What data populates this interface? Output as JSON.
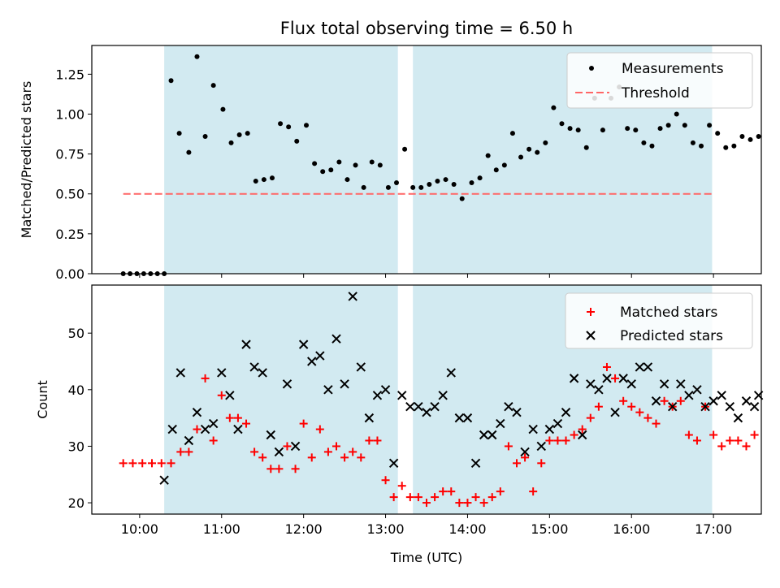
{
  "chart_data": [
    {
      "type": "scatter",
      "title": "Flux total observing time = 6.50 h",
      "xlabel": "",
      "ylabel": "Matched/Predicted stars",
      "ylim": [
        0,
        1.43
      ],
      "yticks": [
        "0.00",
        "0.25",
        "0.50",
        "0.75",
        "1.00",
        "1.25"
      ],
      "xlim": [
        "09:25",
        "17:35"
      ],
      "legend_position": "top-right",
      "legend": [
        {
          "label": "Measurements",
          "marker": "dot",
          "color": "#000000"
        },
        {
          "label": "Threshold",
          "marker": "dashed-line",
          "color": "#ff6666"
        }
      ],
      "threshold": {
        "name": "Threshold",
        "y": 0.5,
        "x_start": "09:48",
        "x_end": "17:00",
        "color": "#ff6666"
      },
      "shaded_intervals": [
        [
          "10:18",
          "13:09"
        ],
        [
          "13:20",
          "16:59"
        ]
      ],
      "shade_color": "#add8e6",
      "series": [
        {
          "name": "Measurements",
          "color": "#000000",
          "points": [
            [
              "09:48",
              0
            ],
            [
              "09:53",
              0
            ],
            [
              "09:58",
              0
            ],
            [
              "10:03",
              0
            ],
            [
              "10:08",
              0
            ],
            [
              "10:13",
              0
            ],
            [
              "10:18",
              0
            ],
            [
              "10:23",
              1.21
            ],
            [
              "10:29",
              0.88
            ],
            [
              "10:36",
              0.76
            ],
            [
              "10:42",
              1.36
            ],
            [
              "10:48",
              0.86
            ],
            [
              "10:54",
              1.18
            ],
            [
              "11:01",
              1.03
            ],
            [
              "11:07",
              0.82
            ],
            [
              "11:13",
              0.87
            ],
            [
              "11:19",
              0.88
            ],
            [
              "11:25",
              0.58
            ],
            [
              "11:31",
              0.59
            ],
            [
              "11:37",
              0.6
            ],
            [
              "11:43",
              0.94
            ],
            [
              "11:49",
              0.92
            ],
            [
              "11:55",
              0.83
            ],
            [
              "12:02",
              0.93
            ],
            [
              "12:08",
              0.69
            ],
            [
              "12:14",
              0.64
            ],
            [
              "12:20",
              0.65
            ],
            [
              "12:26",
              0.7
            ],
            [
              "12:32",
              0.59
            ],
            [
              "12:38",
              0.68
            ],
            [
              "12:44",
              0.54
            ],
            [
              "12:50",
              0.7
            ],
            [
              "12:56",
              0.68
            ],
            [
              "13:02",
              0.54
            ],
            [
              "13:08",
              0.57
            ],
            [
              "13:14",
              0.78
            ],
            [
              "13:20",
              0.54
            ],
            [
              "13:26",
              0.54
            ],
            [
              "13:32",
              0.56
            ],
            [
              "13:38",
              0.58
            ],
            [
              "13:44",
              0.59
            ],
            [
              "13:50",
              0.56
            ],
            [
              "13:56",
              0.47
            ],
            [
              "14:03",
              0.57
            ],
            [
              "14:09",
              0.6
            ],
            [
              "14:15",
              0.74
            ],
            [
              "14:21",
              0.65
            ],
            [
              "14:27",
              0.68
            ],
            [
              "14:33",
              0.88
            ],
            [
              "14:39",
              0.73
            ],
            [
              "14:45",
              0.78
            ],
            [
              "14:51",
              0.76
            ],
            [
              "14:57",
              0.82
            ],
            [
              "15:03",
              1.04
            ],
            [
              "15:09",
              0.94
            ],
            [
              "15:15",
              0.91
            ],
            [
              "15:21",
              0.9
            ],
            [
              "15:27",
              0.79
            ],
            [
              "15:33",
              1.1
            ],
            [
              "15:39",
              0.9
            ],
            [
              "15:45",
              1.1
            ],
            [
              "15:51",
              1.17
            ],
            [
              "15:57",
              0.91
            ],
            [
              "16:03",
              0.9
            ],
            [
              "16:09",
              0.82
            ],
            [
              "16:15",
              0.8
            ],
            [
              "16:21",
              0.91
            ],
            [
              "16:27",
              0.93
            ],
            [
              "16:33",
              1.0
            ],
            [
              "16:39",
              0.93
            ],
            [
              "16:45",
              0.82
            ],
            [
              "16:51",
              0.8
            ],
            [
              "16:57",
              0.93
            ],
            [
              "17:03",
              0.88
            ],
            [
              "17:09",
              0.79
            ],
            [
              "17:15",
              0.8
            ],
            [
              "17:21",
              0.86
            ],
            [
              "17:27",
              0.84
            ],
            [
              "17:33",
              0.86
            ]
          ]
        }
      ]
    },
    {
      "type": "scatter",
      "title": "",
      "xlabel": "Time (UTC)",
      "ylabel": "Count",
      "ylim": [
        18,
        58.5
      ],
      "yticks": [
        "20",
        "30",
        "40",
        "50"
      ],
      "xlim": [
        "09:25",
        "17:35"
      ],
      "xticks": [
        "10:00",
        "11:00",
        "12:00",
        "13:00",
        "14:00",
        "15:00",
        "16:00",
        "17:00"
      ],
      "legend_position": "top-right",
      "legend": [
        {
          "label": "Matched stars",
          "marker": "plus",
          "color": "#ff0000"
        },
        {
          "label": "Predicted stars",
          "marker": "x",
          "color": "#000000"
        }
      ],
      "shaded_intervals": [
        [
          "10:18",
          "13:09"
        ],
        [
          "13:20",
          "16:59"
        ]
      ],
      "shade_color": "#add8e6",
      "series": [
        {
          "name": "Matched stars",
          "marker": "plus",
          "color": "#ff0000",
          "points": [
            [
              "09:48",
              27
            ],
            [
              "09:55",
              27
            ],
            [
              "10:02",
              27
            ],
            [
              "10:09",
              27
            ],
            [
              "10:16",
              27
            ],
            [
              "10:23",
              27
            ],
            [
              "10:30",
              29
            ],
            [
              "10:36",
              29
            ],
            [
              "10:42",
              33
            ],
            [
              "10:48",
              42
            ],
            [
              "10:54",
              31
            ],
            [
              "11:00",
              39
            ],
            [
              "11:06",
              35
            ],
            [
              "11:12",
              35
            ],
            [
              "11:18",
              34
            ],
            [
              "11:24",
              29
            ],
            [
              "11:30",
              28
            ],
            [
              "11:36",
              26
            ],
            [
              "11:42",
              26
            ],
            [
              "11:48",
              30
            ],
            [
              "11:54",
              26
            ],
            [
              "12:00",
              34
            ],
            [
              "12:06",
              28
            ],
            [
              "12:12",
              33
            ],
            [
              "12:18",
              29
            ],
            [
              "12:24",
              30
            ],
            [
              "12:30",
              28
            ],
            [
              "12:36",
              29
            ],
            [
              "12:42",
              28
            ],
            [
              "12:48",
              31
            ],
            [
              "12:54",
              31
            ],
            [
              "13:00",
              24
            ],
            [
              "13:06",
              21
            ],
            [
              "13:12",
              23
            ],
            [
              "13:18",
              21
            ],
            [
              "13:24",
              21
            ],
            [
              "13:30",
              20
            ],
            [
              "13:36",
              21
            ],
            [
              "13:42",
              22
            ],
            [
              "13:48",
              22
            ],
            [
              "13:54",
              20
            ],
            [
              "14:00",
              20
            ],
            [
              "14:06",
              21
            ],
            [
              "14:12",
              20
            ],
            [
              "14:18",
              21
            ],
            [
              "14:24",
              22
            ],
            [
              "14:30",
              30
            ],
            [
              "14:36",
              27
            ],
            [
              "14:42",
              28
            ],
            [
              "14:48",
              22
            ],
            [
              "14:54",
              27
            ],
            [
              "15:00",
              31
            ],
            [
              "15:06",
              31
            ],
            [
              "15:12",
              31
            ],
            [
              "15:18",
              32
            ],
            [
              "15:24",
              33
            ],
            [
              "15:30",
              35
            ],
            [
              "15:36",
              37
            ],
            [
              "15:42",
              44
            ],
            [
              "15:48",
              42
            ],
            [
              "15:54",
              38
            ],
            [
              "16:00",
              37
            ],
            [
              "16:06",
              36
            ],
            [
              "16:12",
              35
            ],
            [
              "16:18",
              34
            ],
            [
              "16:24",
              38
            ],
            [
              "16:30",
              37
            ],
            [
              "16:36",
              38
            ],
            [
              "16:42",
              32
            ],
            [
              "16:48",
              31
            ],
            [
              "16:54",
              37
            ],
            [
              "17:00",
              32
            ],
            [
              "17:06",
              30
            ],
            [
              "17:12",
              31
            ],
            [
              "17:18",
              31
            ],
            [
              "17:24",
              30
            ],
            [
              "17:30",
              32
            ]
          ]
        },
        {
          "name": "Predicted stars",
          "marker": "x",
          "color": "#000000",
          "points": [
            [
              "10:18",
              24
            ],
            [
              "10:24",
              33
            ],
            [
              "10:30",
              43
            ],
            [
              "10:36",
              31
            ],
            [
              "10:42",
              36
            ],
            [
              "10:48",
              33
            ],
            [
              "10:54",
              34
            ],
            [
              "11:00",
              43
            ],
            [
              "11:06",
              39
            ],
            [
              "11:12",
              33
            ],
            [
              "11:18",
              48
            ],
            [
              "11:24",
              44
            ],
            [
              "11:30",
              43
            ],
            [
              "11:36",
              32
            ],
            [
              "11:42",
              29
            ],
            [
              "11:48",
              41
            ],
            [
              "11:54",
              30
            ],
            [
              "12:00",
              48
            ],
            [
              "12:06",
              45
            ],
            [
              "12:12",
              46
            ],
            [
              "12:18",
              40
            ],
            [
              "12:24",
              49
            ],
            [
              "12:30",
              41
            ],
            [
              "12:36",
              56.5
            ],
            [
              "12:42",
              44
            ],
            [
              "12:48",
              35
            ],
            [
              "12:54",
              39
            ],
            [
              "13:00",
              40
            ],
            [
              "13:06",
              27
            ],
            [
              "13:12",
              39
            ],
            [
              "13:18",
              37
            ],
            [
              "13:24",
              37
            ],
            [
              "13:30",
              36
            ],
            [
              "13:36",
              37
            ],
            [
              "13:42",
              39
            ],
            [
              "13:48",
              43
            ],
            [
              "13:54",
              35
            ],
            [
              "14:00",
              35
            ],
            [
              "14:06",
              27
            ],
            [
              "14:12",
              32
            ],
            [
              "14:18",
              32
            ],
            [
              "14:24",
              34
            ],
            [
              "14:30",
              37
            ],
            [
              "14:36",
              36
            ],
            [
              "14:42",
              29
            ],
            [
              "14:48",
              33
            ],
            [
              "14:54",
              30
            ],
            [
              "15:00",
              33
            ],
            [
              "15:06",
              34
            ],
            [
              "15:12",
              36
            ],
            [
              "15:18",
              42
            ],
            [
              "15:24",
              32
            ],
            [
              "15:30",
              41
            ],
            [
              "15:36",
              40
            ],
            [
              "15:42",
              42
            ],
            [
              "15:48",
              36
            ],
            [
              "15:54",
              42
            ],
            [
              "16:00",
              41
            ],
            [
              "16:06",
              44
            ],
            [
              "16:12",
              44
            ],
            [
              "16:18",
              38
            ],
            [
              "16:24",
              41
            ],
            [
              "16:30",
              37
            ],
            [
              "16:36",
              41
            ],
            [
              "16:42",
              39
            ],
            [
              "16:48",
              40
            ],
            [
              "16:54",
              37
            ],
            [
              "17:00",
              38
            ],
            [
              "17:06",
              39
            ],
            [
              "17:12",
              37
            ],
            [
              "17:18",
              35
            ],
            [
              "17:24",
              38
            ],
            [
              "17:30",
              37
            ],
            [
              "17:33",
              39
            ]
          ]
        }
      ]
    }
  ]
}
